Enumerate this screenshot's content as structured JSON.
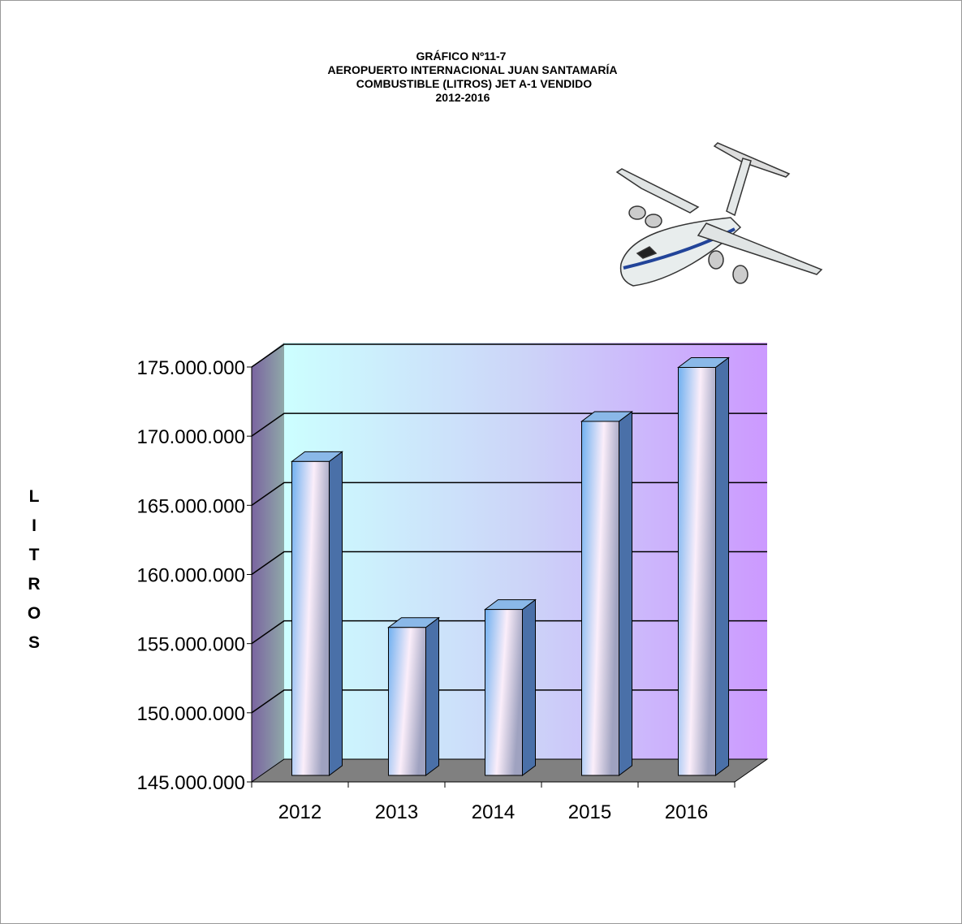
{
  "chart_data": {
    "type": "bar3d",
    "title": [
      "GRÁFICO Nº11-7",
      "AEROPUERTO INTERNACIONAL JUAN SANTAMARÍA",
      "COMBUSTIBLE (LITROS) JET A-1 VENDIDO",
      "2012-2016"
    ],
    "y_label": "LITROS",
    "categories": [
      "2012",
      "2013",
      "2014",
      "2015",
      "2016"
    ],
    "values": [
      167700000,
      155700000,
      157000000,
      170600000,
      174500000
    ],
    "ylim": [
      145000000,
      175000000
    ],
    "yticks": [
      {
        "value": 145000000,
        "label": "145.000.000"
      },
      {
        "value": 150000000,
        "label": "150.000.000"
      },
      {
        "value": 155000000,
        "label": "155.000.000"
      },
      {
        "value": 160000000,
        "label": "160.000.000"
      },
      {
        "value": 165000000,
        "label": "165.000.000"
      },
      {
        "value": 170000000,
        "label": "170.000.000"
      },
      {
        "value": 175000000,
        "label": "175.000.000"
      }
    ],
    "grid": true
  }
}
